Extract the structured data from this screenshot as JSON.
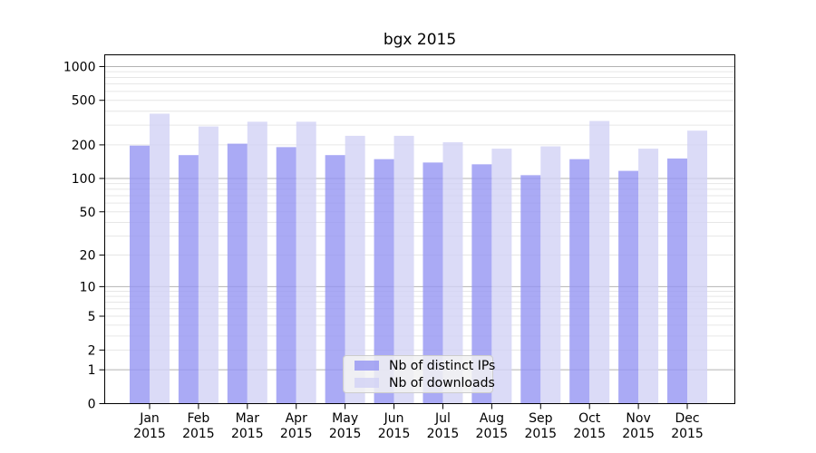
{
  "chart_data": {
    "type": "bar",
    "title": "bgx 2015",
    "y_scale": "log1p",
    "categories": [
      "Jan",
      "Feb",
      "Mar",
      "Apr",
      "May",
      "Jun",
      "Jul",
      "Aug",
      "Sep",
      "Oct",
      "Nov",
      "Dec"
    ],
    "year_label": "2015",
    "series": [
      {
        "name": "Nb of distinct IPs",
        "color": "#9595f2",
        "opacity": 0.8,
        "values": [
          197,
          162,
          205,
          191,
          162,
          149,
          139,
          134,
          107,
          149,
          117,
          151
        ]
      },
      {
        "name": "Nb of downloads",
        "color": "#d2d2f5",
        "opacity": 0.8,
        "values": [
          380,
          292,
          322,
          322,
          241,
          241,
          211,
          185,
          194,
          327,
          185,
          268
        ]
      }
    ],
    "y_ticks": [
      0,
      1,
      2,
      5,
      10,
      20,
      50,
      100,
      200,
      500,
      1000
    ],
    "ylim": [
      0,
      1270
    ],
    "grid": {
      "major_values": [
        1,
        10,
        100,
        1000
      ],
      "major_color": "#b3b3b3",
      "minor_color": "#e6e6e6"
    },
    "axis_color": "#000000",
    "legend": {
      "position": "bottom-center",
      "bg": "#f2f2f2",
      "border": "#cccccc"
    }
  }
}
